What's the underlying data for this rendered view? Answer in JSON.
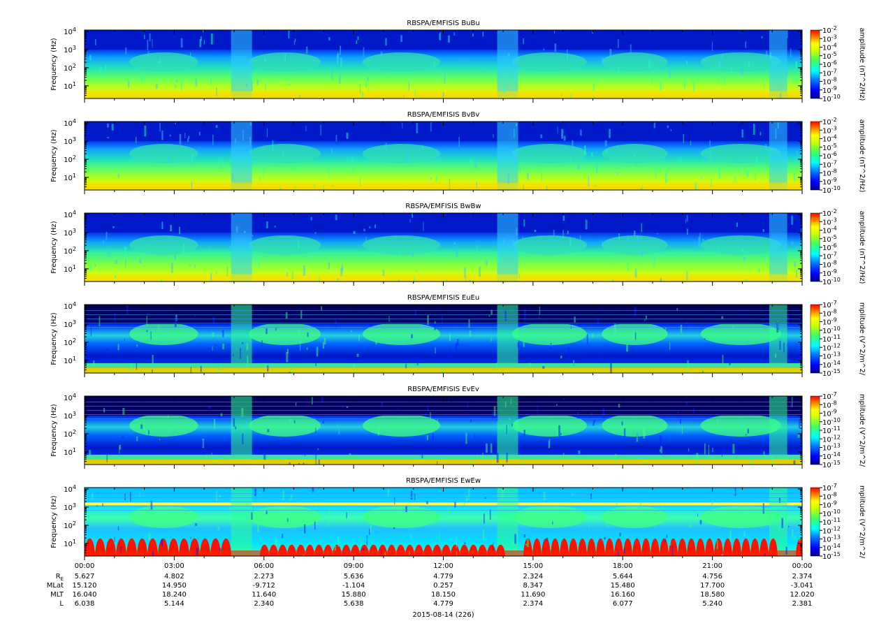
{
  "chart_data": {
    "type": "heatmap",
    "date_label": "2015-08-14 (226)",
    "x_ticks": [
      "00:00",
      "03:00",
      "06:00",
      "09:00",
      "12:00",
      "15:00",
      "18:00",
      "21:00",
      "00:00"
    ],
    "yscale": "log",
    "grid": false,
    "panels": [
      {
        "title": "RBSPA/EMFISIS  BuBu",
        "ylabel": "Frequency (Hz)",
        "y_ticks": [
          "10",
          "10",
          "10",
          "10"
        ],
        "y_exps": [
          "1",
          "2",
          "3",
          "4"
        ],
        "ylim": [
          2,
          12000
        ],
        "colorbar_label": "amplitude (nT^2/Hz)",
        "colorbar_ticks": [
          "10",
          "10",
          "10",
          "10",
          "10",
          "10",
          "10",
          "10",
          "10"
        ],
        "colorbar_exps": [
          "-2",
          "-3",
          "-4",
          "-5",
          "-6",
          "-7",
          "-8",
          "-9",
          "-10"
        ],
        "zlim": [
          1e-10,
          0.01
        ]
      },
      {
        "title": "RBSPA/EMFISIS  BvBv",
        "ylabel": "Frequency (Hz)",
        "y_ticks": [
          "10",
          "10",
          "10",
          "10"
        ],
        "y_exps": [
          "1",
          "2",
          "3",
          "4"
        ],
        "ylim": [
          2,
          12000
        ],
        "colorbar_label": "amplitude (nT^2/Hz)",
        "colorbar_ticks": [
          "10",
          "10",
          "10",
          "10",
          "10",
          "10",
          "10",
          "10",
          "10"
        ],
        "colorbar_exps": [
          "-2",
          "-3",
          "-4",
          "-5",
          "-6",
          "-7",
          "-8",
          "-9",
          "-10"
        ],
        "zlim": [
          1e-10,
          0.01
        ]
      },
      {
        "title": "RBSPA/EMFISIS  BwBw",
        "ylabel": "Frequency (Hz)",
        "y_ticks": [
          "10",
          "10",
          "10",
          "10"
        ],
        "y_exps": [
          "1",
          "2",
          "3",
          "4"
        ],
        "ylim": [
          2,
          12000
        ],
        "colorbar_label": "amplitude (nT^2/Hz)",
        "colorbar_ticks": [
          "10",
          "10",
          "10",
          "10",
          "10",
          "10",
          "10",
          "10",
          "10"
        ],
        "colorbar_exps": [
          "-2",
          "-3",
          "-4",
          "-5",
          "-6",
          "-7",
          "-8",
          "-9",
          "-10"
        ],
        "zlim": [
          1e-10,
          0.01
        ]
      },
      {
        "title": "RBSPA/EMFISIS  EuEu",
        "ylabel": "Frequency (Hz)",
        "y_ticks": [
          "10",
          "10",
          "10",
          "10"
        ],
        "y_exps": [
          "1",
          "2",
          "3",
          "4"
        ],
        "ylim": [
          2,
          12000
        ],
        "colorbar_label": "mplitude (V^2/m^2/",
        "colorbar_ticks": [
          "10",
          "10",
          "10",
          "10",
          "10",
          "10",
          "10",
          "10",
          "10"
        ],
        "colorbar_exps": [
          "-7",
          "-8",
          "-9",
          "-10",
          "-11",
          "-12",
          "-13",
          "-14",
          "-15"
        ],
        "zlim": [
          1e-15,
          1e-07
        ]
      },
      {
        "title": "RBSPA/EMFISIS  EvEv",
        "ylabel": "Frequency (Hz)",
        "y_ticks": [
          "10",
          "10",
          "10",
          "10"
        ],
        "y_exps": [
          "1",
          "2",
          "3",
          "4"
        ],
        "ylim": [
          2,
          12000
        ],
        "colorbar_label": "mplitude (V^2/m^2/",
        "colorbar_ticks": [
          "10",
          "10",
          "10",
          "10",
          "10",
          "10",
          "10",
          "10",
          "10"
        ],
        "colorbar_exps": [
          "-7",
          "-8",
          "-9",
          "-10",
          "-11",
          "-12",
          "-13",
          "-14",
          "-15"
        ],
        "zlim": [
          1e-15,
          1e-07
        ]
      },
      {
        "title": "RBSPA/EMFISIS  EwEw",
        "ylabel": "Frequency (Hz)",
        "y_ticks": [
          "10",
          "10",
          "10",
          "10"
        ],
        "y_exps": [
          "1",
          "2",
          "3",
          "4"
        ],
        "ylim": [
          2,
          12000
        ],
        "colorbar_label": "mplitude (V^2/m^2/",
        "colorbar_ticks": [
          "10",
          "10",
          "10",
          "10",
          "10",
          "10",
          "10",
          "10",
          "10"
        ],
        "colorbar_exps": [
          "-7",
          "-8",
          "-9",
          "-10",
          "-11",
          "-12",
          "-13",
          "-14",
          "-15"
        ],
        "zlim": [
          1e-15,
          1e-07
        ]
      }
    ],
    "ephemeris": [
      {
        "label": "R",
        "label_sub": "E",
        "values": [
          "5.627",
          "4.802",
          "2.273",
          "5.636",
          "4.779",
          "2.324",
          "5.644",
          "4.756",
          "2.374"
        ]
      },
      {
        "label": "MLat",
        "values": [
          "15.120",
          "14.950",
          "-9.712",
          "-1.104",
          "0.257",
          "8.347",
          "15.480",
          "17.700",
          "-3.041"
        ]
      },
      {
        "label": "MLT",
        "values": [
          "16.040",
          "18.240",
          "11.640",
          "15.880",
          "18.150",
          "11.690",
          "16.160",
          "18.580",
          "12.020"
        ]
      },
      {
        "label": "L",
        "values": [
          "6.038",
          "5.144",
          "2.340",
          "5.638",
          "4.779",
          "2.374",
          "6.077",
          "5.240",
          "2.381"
        ]
      }
    ],
    "colormap": [
      "#00008f",
      "#0000ff",
      "#0080ff",
      "#00ffff",
      "#80ff80",
      "#ffff00",
      "#ff8000",
      "#ff0000"
    ]
  }
}
